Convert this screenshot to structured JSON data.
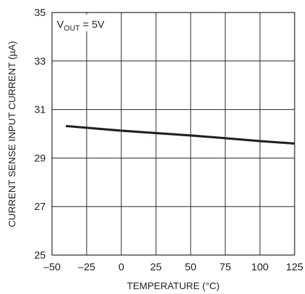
{
  "chart_data": {
    "type": "line",
    "xlabel": "TEMPERATURE (°C)",
    "ylabel": "CURRENT SENSE INPUT CURRENT (µA)",
    "xlim": [
      -50,
      125
    ],
    "ylim": [
      25,
      35
    ],
    "x_ticks": [
      -50,
      -25,
      0,
      25,
      50,
      75,
      100,
      125
    ],
    "y_ticks": [
      25,
      27,
      29,
      31,
      33,
      35
    ],
    "x_tick_labels": [
      "–50",
      "–25",
      "0",
      "25",
      "50",
      "75",
      "100",
      "125"
    ],
    "y_tick_labels": [
      "25",
      "27",
      "29",
      "31",
      "33",
      "35"
    ],
    "grid": true,
    "annotation": {
      "main": "V",
      "sub": "OUT",
      "rest": " = 5V"
    },
    "series": [
      {
        "x": [
          -40,
          -25,
          0,
          25,
          50,
          75,
          100,
          125
        ],
        "y": [
          30.32,
          30.25,
          30.13,
          30.03,
          29.93,
          29.82,
          29.7,
          29.6
        ],
        "color": "#231f20"
      }
    ]
  }
}
